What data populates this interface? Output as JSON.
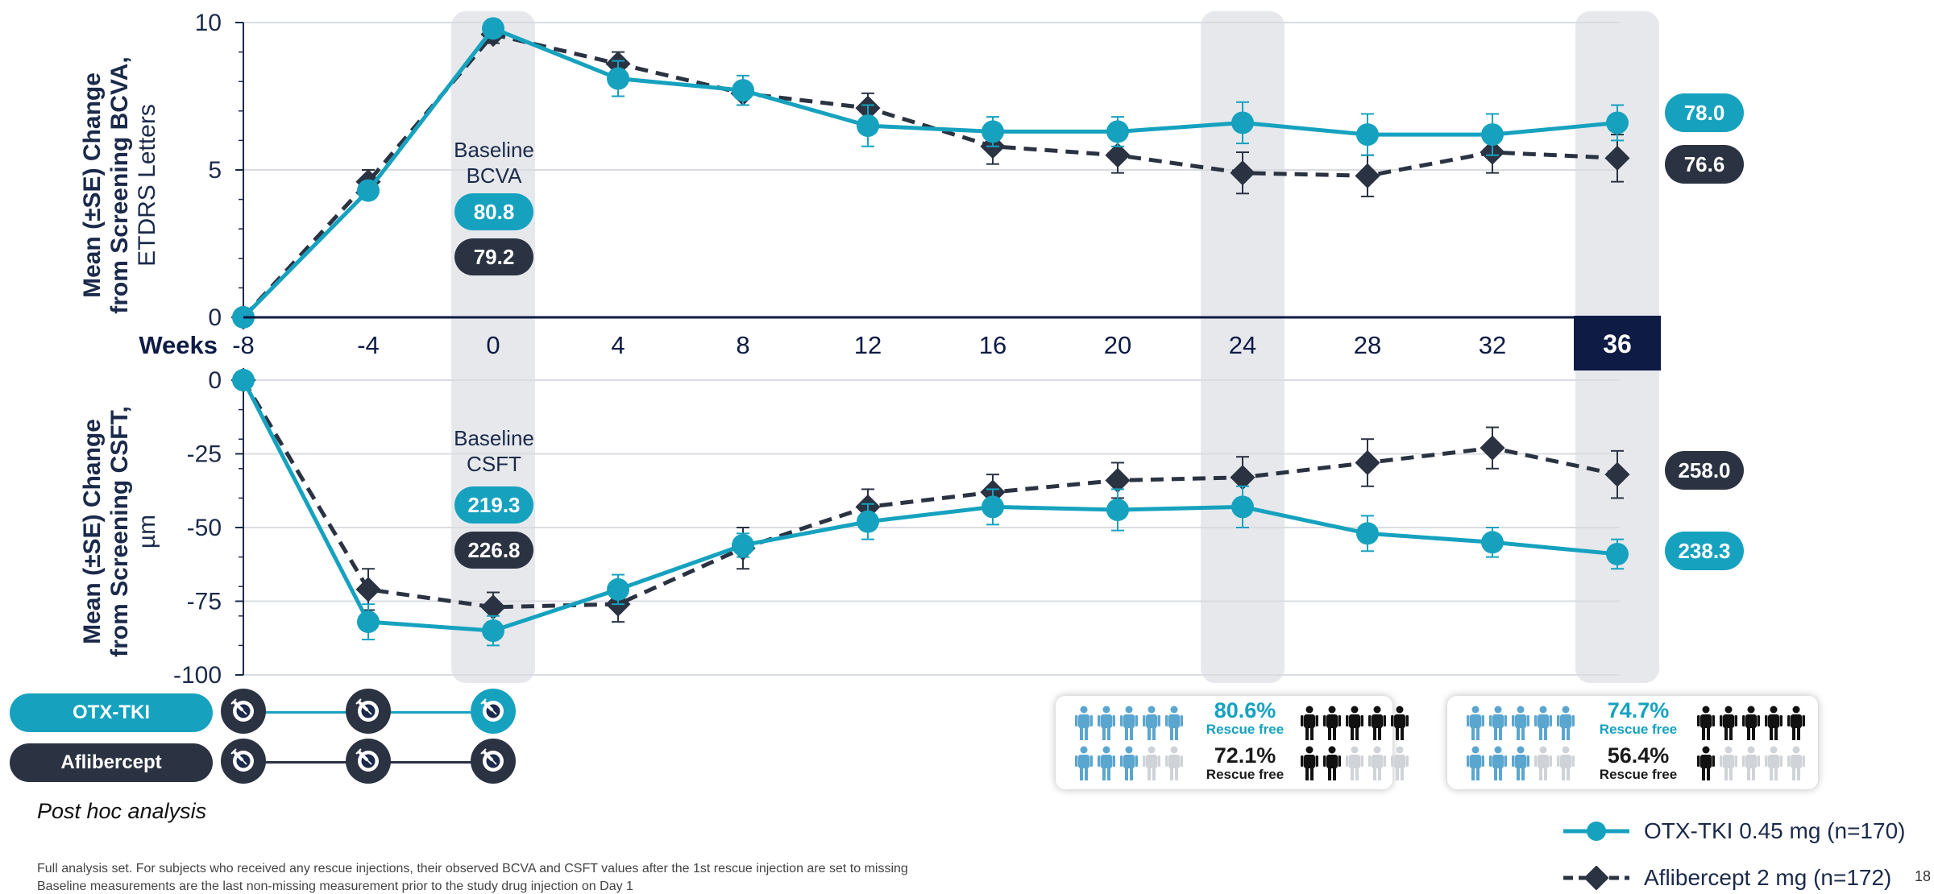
{
  "chart_data": [
    {
      "type": "line",
      "ylabel_bold": "Mean (±SE) Change from Screening BCVA,",
      "ylabel_unit": "ETDRS Letters",
      "x": [
        -8,
        -4,
        0,
        4,
        8,
        12,
        16,
        20,
        24,
        28,
        32,
        36
      ],
      "ylim": [
        0,
        10
      ],
      "yticks": [
        0,
        5,
        10
      ],
      "grid": true,
      "series": [
        {
          "name": "OTX-TKI 0.45 mg (n=170)",
          "color": "#16a2bf",
          "values": [
            0,
            4.3,
            9.8,
            8.1,
            7.7,
            6.5,
            6.3,
            6.3,
            6.6,
            6.2,
            6.2,
            6.6
          ],
          "se": [
            0,
            0.3,
            0.3,
            0.6,
            0.5,
            0.7,
            0.5,
            0.5,
            0.7,
            0.7,
            0.7,
            0.6
          ],
          "end_label": "78.0"
        },
        {
          "name": "Aflibercept 2 mg (n=172)",
          "color": "#2b3342",
          "values": [
            0,
            4.6,
            9.6,
            8.6,
            7.6,
            7.1,
            5.8,
            5.5,
            4.9,
            4.8,
            5.6,
            5.4
          ],
          "se": [
            0,
            0.4,
            0.3,
            0.4,
            0.4,
            0.5,
            0.6,
            0.6,
            0.7,
            0.7,
            0.7,
            0.8
          ],
          "end_label": "76.6"
        }
      ],
      "baseline_title": [
        "Baseline",
        "BCVA"
      ],
      "baseline_values": [
        "80.8",
        "79.2"
      ]
    },
    {
      "type": "line",
      "ylabel_bold": "Mean (±SE) Change from Screening CSFT,",
      "ylabel_unit": "µm",
      "x": [
        -8,
        -4,
        0,
        4,
        8,
        12,
        16,
        20,
        24,
        28,
        32,
        36
      ],
      "ylim": [
        -100,
        0
      ],
      "yticks": [
        0,
        -25,
        -50,
        -75,
        -100
      ],
      "grid": true,
      "series": [
        {
          "name": "OTX-TKI 0.45 mg (n=170)",
          "color": "#16a2bf",
          "values": [
            0,
            -82,
            -85,
            -71,
            -56,
            -48,
            -43,
            -44,
            -43,
            -52,
            -55,
            -59
          ],
          "se": [
            0,
            6,
            5,
            5,
            4,
            6,
            6,
            7,
            7,
            6,
            5,
            5
          ],
          "end_label": "238.3"
        },
        {
          "name": "Aflibercept 2 mg (n=172)",
          "color": "#2b3342",
          "values": [
            0,
            -71,
            -77,
            -76,
            -57,
            -43,
            -38,
            -34,
            -33,
            -28,
            -23,
            -32
          ],
          "se": [
            0,
            7,
            5,
            6,
            7,
            6,
            6,
            6,
            7,
            8,
            7,
            8
          ],
          "end_label": "258.0"
        }
      ],
      "baseline_title": [
        "Baseline",
        "CSFT"
      ],
      "baseline_values": [
        "219.3",
        "226.8"
      ]
    }
  ],
  "x_axis": {
    "label": "Weeks",
    "ticks": [
      "-8",
      "-4",
      "0",
      "4",
      "8",
      "12",
      "16",
      "20",
      "24",
      "28",
      "32",
      "36"
    ],
    "highlight": "36"
  },
  "highlight_weeks": [
    0,
    24,
    36
  ],
  "injections": {
    "otx": {
      "label": "OTX-TKI",
      "weeks": [
        -8,
        -4,
        0
      ],
      "color": "#16a2bf"
    },
    "afl": {
      "label": "Aflibercept",
      "weeks": [
        -8,
        -4,
        0
      ],
      "color": "#2b3342"
    }
  },
  "rescue": [
    {
      "week": 24,
      "otx_pct": "80.6%",
      "otx_fraction": 0.806,
      "afl_pct": "72.1%",
      "afl_fraction": 0.721,
      "label": "Rescue free"
    },
    {
      "week": 36,
      "otx_pct": "74.7%",
      "otx_fraction": 0.747,
      "afl_pct": "56.4%",
      "afl_fraction": 0.564,
      "label": "Rescue free"
    }
  ],
  "legend": [
    {
      "label": "OTX-TKI 0.45 mg (n=170)",
      "marker": "circle",
      "color": "#16a2bf"
    },
    {
      "label": "Aflibercept 2 mg (n=172)",
      "marker": "diamond",
      "color": "#2b3342"
    }
  ],
  "post_hoc": "Post hoc analysis",
  "footnote1": "Full analysis set. For subjects who received any rescue injections, their observed BCVA and CSFT values after the 1st rescue injection are set to missing",
  "footnote2": "Baseline measurements are the last non-missing measurement prior to the study drug injection on Day 1",
  "page_number": "18",
  "colors": {
    "teal": "#16a2bf",
    "dark": "#2b3342",
    "navy": "#0d1b45",
    "highlight_bg": "#e6e8ec",
    "grid": "#d9dce1"
  }
}
